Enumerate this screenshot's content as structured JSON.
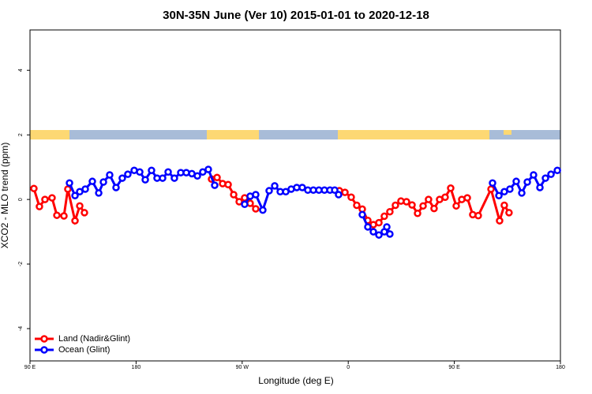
{
  "chart_data": {
    "type": "line",
    "title": "30N-35N June (Ver 10)   2015-01-01 to 2020-12-18",
    "x_label": "Longitude (deg E)",
    "y_label": "XCO2 - MLO trend (ppm)",
    "xlim": [
      90,
      540
    ],
    "ylim": [
      -5,
      5.25
    ],
    "xticks": [
      {
        "value": 90,
        "label": "90 E"
      },
      180,
      {
        "value": 270,
        "label": "90 W"
      },
      {
        "value": 360,
        "label": "0"
      },
      {
        "value": 450,
        "label": "90 E"
      },
      {
        "value": 540,
        "label": "180"
      }
    ],
    "yticks": [
      -4,
      -2,
      0,
      2,
      4
    ],
    "legend": "bottom-left",
    "series": [
      {
        "name": "Land (Nadir&Glint)",
        "color": "#ff0000",
        "x": [
          93.3,
          98.0,
          102.7,
          108.7,
          112.8,
          118.8,
          122.1,
          128.2,
          132.2,
          136.2,
          null,
          244.0,
          248.7,
          253.4,
          258.1,
          262.8,
          267.5,
          272.1,
          276.8,
          281.5,
          null,
          352.5,
          357.2,
          362.5,
          367.2,
          371.9,
          376.6,
          381.3,
          386.0,
          390.6,
          395.3,
          400.0,
          404.7,
          409.4,
          414.1,
          418.8,
          423.5,
          428.1,
          432.8,
          437.5,
          442.2,
          446.9,
          451.6,
          456.3,
          461.0,
          465.6,
          470.3,
          481.1,
          488.4,
          492.4,
          496.4
        ],
        "values": [
          0.34,
          -0.22,
          0,
          0.05,
          -0.49,
          -0.51,
          0.32,
          -0.66,
          -0.2,
          -0.41,
          null,
          0.63,
          0.68,
          0.49,
          0.46,
          0.15,
          -0.07,
          0.05,
          -0.12,
          -0.29,
          null,
          0.27,
          0.22,
          0.07,
          -0.18,
          -0.3,
          -0.65,
          -0.78,
          -0.72,
          -0.52,
          -0.38,
          -0.18,
          -0.05,
          -0.07,
          -0.17,
          -0.43,
          -0.2,
          0,
          -0.28,
          0,
          0.07,
          0.35,
          -0.2,
          0,
          0.05,
          -0.47,
          -0.5,
          0.32,
          -0.66,
          -0.18,
          -0.41
        ]
      },
      {
        "name": "Ocean (Glint)",
        "color": "#0000ff",
        "x": [
          123.5,
          128.2,
          132.2,
          136.9,
          142.9,
          148.3,
          152.3,
          157.6,
          163.0,
          168.3,
          173.0,
          178.4,
          183.1,
          187.8,
          193.1,
          197.8,
          202.5,
          207.2,
          212.5,
          217.9,
          222.6,
          227.3,
          232.0,
          236.6,
          241.3,
          246.7,
          null,
          272.1,
          276.8,
          281.5,
          287.5,
          292.9,
          297.6,
          302.3,
          307.0,
          311.6,
          316.3,
          321.0,
          325.7,
          330.4,
          335.1,
          339.8,
          344.5,
          348.5,
          351.8,
          null,
          371.9,
          376.6,
          381.3,
          386.0,
          390.6,
          392.7,
          395.3,
          null,
          482.4,
          487.8,
          492.4,
          497.1,
          502.5,
          507.2,
          511.9,
          517.2,
          522.6,
          527.3,
          532.0,
          537.4
        ],
        "values": [
          0.51,
          0.12,
          0.24,
          0.32,
          0.56,
          0.2,
          0.54,
          0.76,
          0.37,
          0.66,
          0.78,
          0.9,
          0.85,
          0.61,
          0.9,
          0.66,
          0.66,
          0.85,
          0.66,
          0.83,
          0.83,
          0.8,
          0.73,
          0.85,
          0.93,
          0.44,
          null,
          -0.15,
          0.1,
          0.15,
          -0.33,
          0.27,
          0.42,
          0.24,
          0.24,
          0.32,
          0.37,
          0.37,
          0.29,
          0.29,
          0.29,
          0.29,
          0.29,
          0.29,
          0.15,
          null,
          -0.47,
          -0.85,
          -1.0,
          -1.1,
          -1.0,
          -0.85,
          -1.07,
          null,
          0.51,
          0.12,
          0.24,
          0.32,
          0.56,
          0.2,
          0.54,
          0.76,
          0.37,
          0.66,
          0.78,
          0.9
        ]
      }
    ]
  }
}
